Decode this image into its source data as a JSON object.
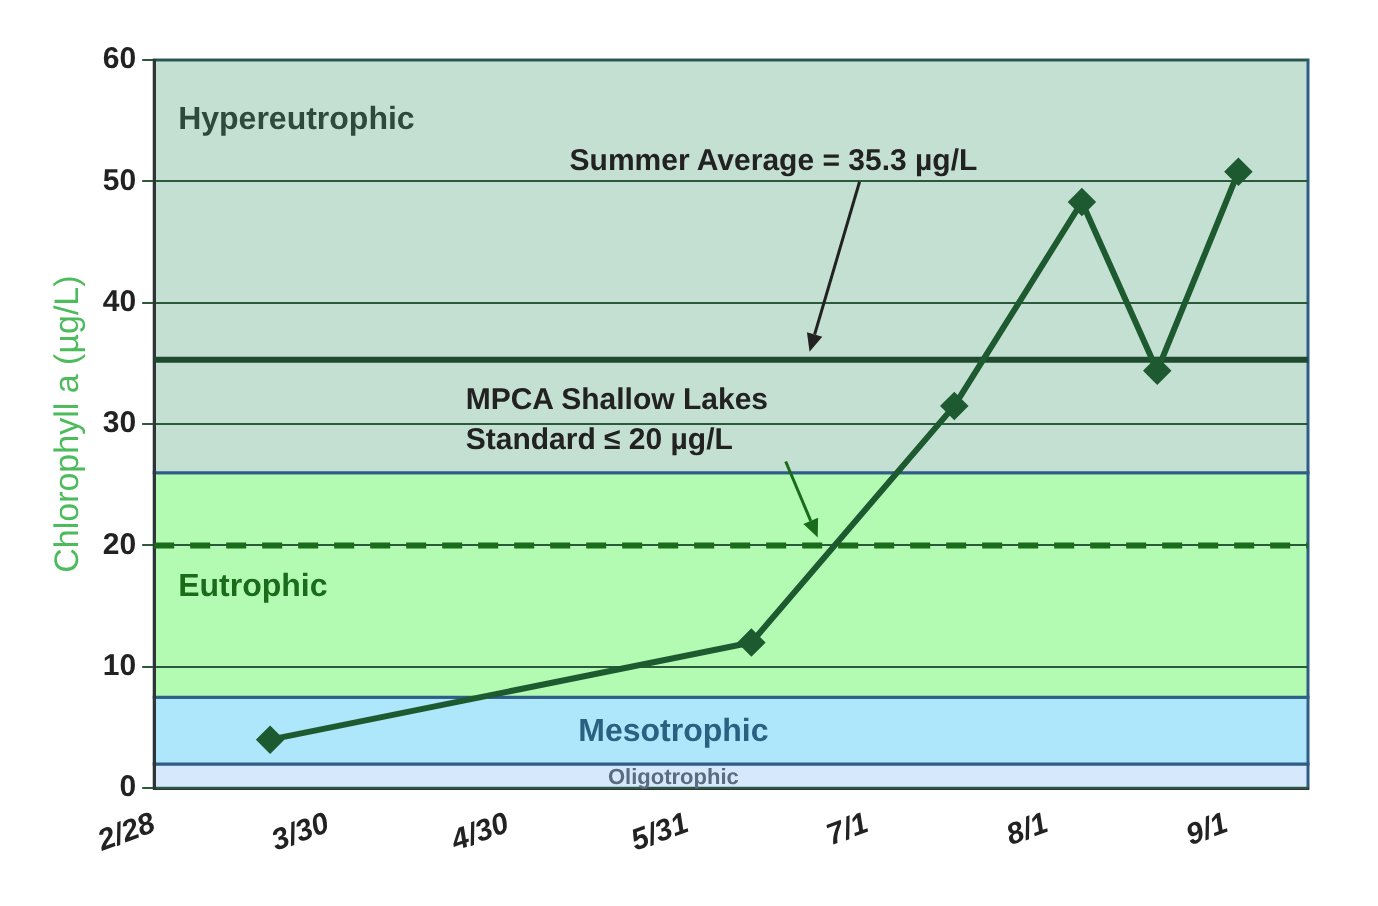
{
  "chart_data": {
    "type": "line",
    "ylabel": "Chlorophyll a (µg/L)",
    "x": [
      "--03-20",
      "--06-11",
      "--07-16",
      "--08-07",
      "--08-20",
      "--09-03"
    ],
    "series": [
      {
        "color": "#1e5a30",
        "values": [
          4,
          12,
          31.5,
          48.3,
          34.4,
          50.8
        ]
      }
    ],
    "xlim": [
      "--02-28",
      "--09-15"
    ],
    "xticks": [
      {
        "value": "--02-28",
        "label": "2/28"
      },
      {
        "value": "--03-30",
        "label": "3/30"
      },
      {
        "value": "--04-30",
        "label": "4/30"
      },
      {
        "value": "--05-31",
        "label": "5/31"
      },
      {
        "value": "--07-01",
        "label": "7/1"
      },
      {
        "value": "--08-01",
        "label": "8/1"
      },
      {
        "value": "--09-01",
        "label": "9/1"
      }
    ],
    "ylim": [
      0,
      60
    ],
    "yticks": [
      0,
      10,
      20,
      30,
      40,
      50,
      60
    ],
    "grid": "y",
    "legend": false,
    "marker": "diamond",
    "line_style": "solid",
    "bands": [
      {
        "axis": "y",
        "from": 0,
        "to": 2,
        "label": "Oligotrophic",
        "color": "#d6e8fb"
      },
      {
        "axis": "y",
        "from": 2,
        "to": 7.5,
        "label": "Mesotrophic",
        "color": "#aee6fb"
      },
      {
        "axis": "y",
        "from": 7.5,
        "to": 26,
        "label": "Eutrophic",
        "color": "#b3fbb3"
      },
      {
        "axis": "y",
        "from": 26,
        "to": 60,
        "label": "Hypereutrophic",
        "color": "#c4e0d2"
      }
    ],
    "ref_lines": [
      {
        "axis": "y",
        "value": 35.3,
        "label": "Summer Average = 35.3 µg/L",
        "color": "#1e4a30",
        "line_style": "solid"
      },
      {
        "axis": "y",
        "value": 20,
        "label": "MPCA Shallow Lakes Standard ≤ 20 µg/L",
        "color": "#1a6b1a",
        "line_style": "dashed"
      }
    ]
  }
}
